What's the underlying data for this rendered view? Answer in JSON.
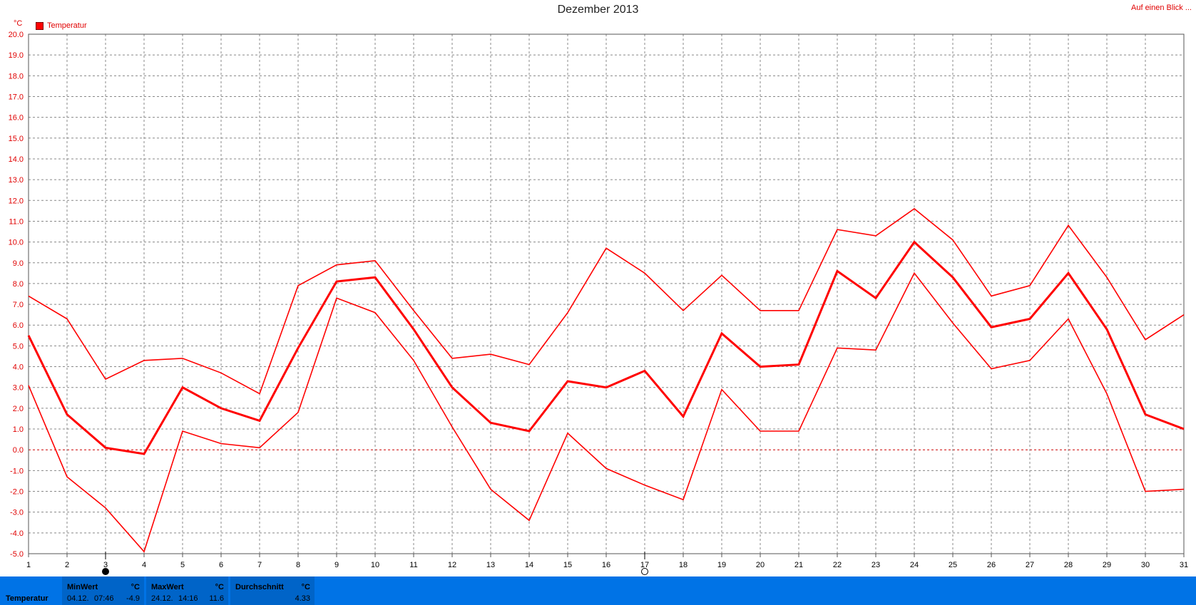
{
  "header": {
    "title": "Dezember 2013",
    "link": "Auf einen Blick ..."
  },
  "legend": {
    "unit": "°C",
    "label": "Temperatur"
  },
  "colors": {
    "series": "#ff0000",
    "grid": "#888888",
    "zero": "#cc0000",
    "bar": "#0073e6"
  },
  "chart_data": {
    "type": "line",
    "title": "Dezember 2013",
    "ylabel": "°C",
    "ylim": [
      -5,
      20
    ],
    "yticks": [
      "-5.0",
      "-4.0",
      "-3.0",
      "-2.0",
      "-1.0",
      "0.0",
      "1.0",
      "2.0",
      "3.0",
      "4.0",
      "5.0",
      "6.0",
      "7.0",
      "8.0",
      "9.0",
      "10.0",
      "11.0",
      "12.0",
      "13.0",
      "14.0",
      "15.0",
      "16.0",
      "17.0",
      "18.0",
      "19.0",
      "20.0"
    ],
    "x": [
      1,
      2,
      3,
      4,
      5,
      6,
      7,
      8,
      9,
      10,
      11,
      12,
      13,
      14,
      15,
      16,
      17,
      18,
      19,
      20,
      21,
      22,
      23,
      24,
      25,
      26,
      27,
      28,
      29,
      30,
      31
    ],
    "grid": true,
    "legend": "top-left",
    "markers": [
      {
        "day": 3,
        "icon": "new-moon-icon"
      },
      {
        "day": 17,
        "icon": "full-moon-icon"
      }
    ],
    "series": [
      {
        "name": "Temperatur",
        "role": "max",
        "values": [
          7.4,
          6.3,
          3.4,
          4.3,
          4.4,
          3.7,
          2.7,
          7.9,
          8.9,
          9.1,
          6.7,
          4.4,
          4.6,
          4.1,
          6.6,
          9.7,
          8.5,
          6.7,
          8.4,
          6.7,
          6.7,
          10.6,
          10.3,
          11.6,
          10.1,
          7.4,
          7.9,
          10.8,
          8.3,
          5.3,
          6.5
        ]
      },
      {
        "name": "Temperatur",
        "role": "mean",
        "values": [
          5.5,
          1.7,
          0.1,
          -0.2,
          3.0,
          2.0,
          1.4,
          4.9,
          8.1,
          8.3,
          5.8,
          3.0,
          1.3,
          0.9,
          3.3,
          3.0,
          3.8,
          1.6,
          5.6,
          4.0,
          4.1,
          8.6,
          7.3,
          10.0,
          8.3,
          5.9,
          6.3,
          8.5,
          5.8,
          1.7,
          1.0
        ]
      },
      {
        "name": "Temperatur",
        "role": "min",
        "values": [
          3.1,
          -1.3,
          -2.8,
          -4.9,
          0.9,
          0.3,
          0.1,
          1.8,
          7.3,
          6.6,
          4.3,
          1.1,
          -1.9,
          -3.4,
          0.8,
          -0.9,
          -1.7,
          -2.4,
          2.9,
          0.9,
          0.9,
          4.9,
          4.8,
          8.5,
          6.1,
          3.9,
          4.3,
          6.3,
          2.7,
          -2.0,
          -1.9
        ]
      }
    ]
  },
  "stats": {
    "row_label": "Temperatur",
    "min": {
      "header": "MinWert",
      "unit": "°C",
      "date": "04.12.",
      "time": "07:46",
      "value": "-4.9"
    },
    "max": {
      "header": "MaxWert",
      "unit": "°C",
      "date": "24.12.",
      "time": "14:16",
      "value": "11.6"
    },
    "avg": {
      "header": "Durchschnitt",
      "unit": "°C",
      "value": "4.33"
    }
  }
}
